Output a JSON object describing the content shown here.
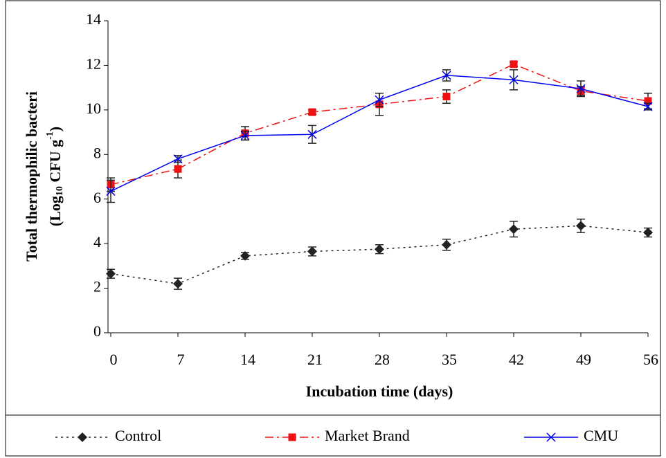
{
  "chart_data": {
    "type": "line",
    "x_label": "Incubation time (days)",
    "y_label": "Total thermophilic bacteri",
    "y_label_2": [
      "(Log",
      "10",
      " CFU g",
      "-1",
      ")"
    ],
    "x": [
      0,
      7,
      14,
      21,
      28,
      35,
      42,
      49,
      56
    ],
    "xlim": [
      0,
      56
    ],
    "xticks": [
      0,
      7,
      14,
      21,
      28,
      35,
      42,
      49,
      56
    ],
    "ylim": [
      0,
      14
    ],
    "yticks": [
      0,
      2,
      4,
      6,
      8,
      10,
      12,
      14
    ],
    "series": [
      {
        "name": "Control",
        "color": "#222222",
        "marker": "diamond",
        "linestyle": "dotted",
        "values": [
          2.65,
          2.2,
          3.45,
          3.65,
          3.75,
          3.95,
          4.65,
          4.8,
          4.5
        ],
        "errors": [
          0.2,
          0.25,
          0.15,
          0.2,
          0.2,
          0.25,
          0.35,
          0.3,
          0.2
        ]
      },
      {
        "name": "Market Brand",
        "color": "#ee1111",
        "marker": "square",
        "linestyle": "dashdot",
        "values": [
          6.65,
          7.35,
          8.95,
          9.9,
          10.25,
          10.6,
          12.05,
          10.85,
          10.4
        ],
        "errors": [
          0.3,
          0.4,
          0.3,
          0.1,
          0.5,
          0.3,
          0.1,
          0.2,
          0.35
        ]
      },
      {
        "name": "CMU",
        "color": "#0000ee",
        "marker": "x",
        "linestyle": "solid",
        "values": [
          6.35,
          7.8,
          8.85,
          8.9,
          10.45,
          11.55,
          11.35,
          10.95,
          10.15
        ],
        "errors": [
          0.5,
          0.15,
          0.2,
          0.4,
          0.3,
          0.25,
          0.45,
          0.35,
          0.15
        ]
      }
    ]
  }
}
